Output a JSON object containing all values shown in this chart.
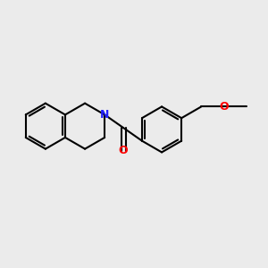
{
  "background_color": "#ebebeb",
  "bond_color": "#000000",
  "N_color": "#2020ff",
  "O_color": "#ff0000",
  "bond_width": 1.5,
  "figsize": [
    3.0,
    3.0
  ],
  "dpi": 100,
  "xlim": [
    -2.8,
    3.2
  ],
  "ylim": [
    -1.8,
    1.8
  ]
}
